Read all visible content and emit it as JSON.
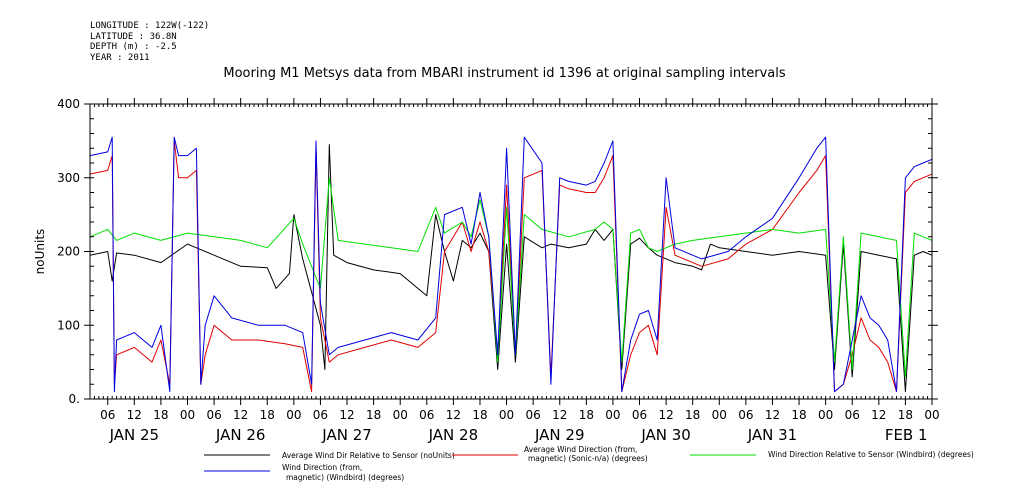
{
  "header": {
    "longitude": "LONGITUDE : 122W(-122)",
    "latitude": "LATITUDE : 36.8N",
    "depth": "DEPTH (m) : -2.5",
    "year": "YEAR : 2011"
  },
  "chart_data": {
    "type": "line",
    "title": "Mooring M1 Metsys data from MBARI instrument id 1396 at original sampling intervals",
    "ylabel": "noUnits",
    "xlabel": "",
    "ylim": [
      0,
      400
    ],
    "yticks": [
      0,
      100,
      200,
      300,
      400
    ],
    "ytick_labels": [
      "0.",
      "100",
      "200",
      "300",
      "400"
    ],
    "xlim_hours": [
      2,
      192
    ],
    "hour_ticks": [
      "06",
      "12",
      "18",
      "00",
      "06",
      "12",
      "18",
      "00",
      "06",
      "12",
      "18",
      "00",
      "06",
      "12",
      "18",
      "00",
      "06",
      "12",
      "18",
      "00",
      "06",
      "12",
      "18",
      "00",
      "06",
      "12",
      "18",
      "00",
      "06",
      "12",
      "18",
      "00"
    ],
    "day_labels": [
      "JAN 25",
      "JAN 26",
      "JAN 27",
      "JAN 28",
      "JAN 29",
      "JAN 30",
      "JAN 31",
      "FEB 1"
    ],
    "grid": false,
    "legend_position": "bottom",
    "series": [
      {
        "name": "Average Wind Dir Relative to Sensor (noUnits)",
        "color": "#000000",
        "points": [
          [
            2,
            195
          ],
          [
            6,
            200
          ],
          [
            7,
            160
          ],
          [
            8,
            198
          ],
          [
            12,
            195
          ],
          [
            18,
            185
          ],
          [
            24,
            210
          ],
          [
            30,
            195
          ],
          [
            36,
            180
          ],
          [
            42,
            178
          ],
          [
            44,
            150
          ],
          [
            47,
            170
          ],
          [
            48,
            250
          ],
          [
            50,
            190
          ],
          [
            52,
            145
          ],
          [
            54,
            100
          ],
          [
            55,
            40
          ],
          [
            56,
            345
          ],
          [
            57,
            195
          ],
          [
            60,
            185
          ],
          [
            66,
            175
          ],
          [
            72,
            170
          ],
          [
            76,
            150
          ],
          [
            78,
            140
          ],
          [
            80,
            250
          ],
          [
            82,
            200
          ],
          [
            84,
            160
          ],
          [
            86,
            215
          ],
          [
            88,
            205
          ],
          [
            90,
            225
          ],
          [
            92,
            200
          ],
          [
            94,
            40
          ],
          [
            96,
            210
          ],
          [
            98,
            50
          ],
          [
            100,
            220
          ],
          [
            104,
            205
          ],
          [
            106,
            210
          ],
          [
            110,
            205
          ],
          [
            114,
            210
          ],
          [
            116,
            230
          ],
          [
            118,
            215
          ],
          [
            120,
            230
          ],
          [
            122,
            40
          ],
          [
            124,
            210
          ],
          [
            126,
            218
          ],
          [
            128,
            205
          ],
          [
            130,
            195
          ],
          [
            134,
            185
          ],
          [
            138,
            180
          ],
          [
            140,
            175
          ],
          [
            142,
            210
          ],
          [
            144,
            205
          ],
          [
            150,
            200
          ],
          [
            156,
            195
          ],
          [
            162,
            200
          ],
          [
            168,
            195
          ],
          [
            170,
            40
          ],
          [
            172,
            210
          ],
          [
            174,
            30
          ],
          [
            176,
            200
          ],
          [
            180,
            195
          ],
          [
            184,
            190
          ],
          [
            186,
            10
          ],
          [
            188,
            195
          ],
          [
            190,
            200
          ],
          [
            192,
            195
          ]
        ]
      },
      {
        "name": "Average Wind Direction (from, magnetic) (Sonic-n/a) (degrees)",
        "color": "#e00000",
        "points": [
          [
            2,
            305
          ],
          [
            6,
            310
          ],
          [
            7,
            330
          ],
          [
            7.5,
            20
          ],
          [
            8,
            60
          ],
          [
            12,
            70
          ],
          [
            16,
            50
          ],
          [
            18,
            80
          ],
          [
            20,
            20
          ],
          [
            21,
            350
          ],
          [
            22,
            300
          ],
          [
            24,
            300
          ],
          [
            26,
            310
          ],
          [
            27,
            20
          ],
          [
            28,
            60
          ],
          [
            30,
            100
          ],
          [
            34,
            80
          ],
          [
            40,
            80
          ],
          [
            46,
            75
          ],
          [
            50,
            70
          ],
          [
            52,
            10
          ],
          [
            53,
            340
          ],
          [
            54,
            110
          ],
          [
            56,
            50
          ],
          [
            58,
            60
          ],
          [
            64,
            70
          ],
          [
            70,
            80
          ],
          [
            76,
            70
          ],
          [
            80,
            90
          ],
          [
            82,
            200
          ],
          [
            86,
            240
          ],
          [
            88,
            200
          ],
          [
            90,
            240
          ],
          [
            92,
            200
          ],
          [
            94,
            60
          ],
          [
            96,
            290
          ],
          [
            98,
            60
          ],
          [
            100,
            300
          ],
          [
            104,
            310
          ],
          [
            106,
            30
          ],
          [
            108,
            290
          ],
          [
            110,
            285
          ],
          [
            114,
            280
          ],
          [
            116,
            280
          ],
          [
            118,
            300
          ],
          [
            120,
            330
          ],
          [
            122,
            10
          ],
          [
            124,
            60
          ],
          [
            126,
            90
          ],
          [
            128,
            100
          ],
          [
            130,
            60
          ],
          [
            132,
            260
          ],
          [
            134,
            195
          ],
          [
            140,
            180
          ],
          [
            146,
            190
          ],
          [
            150,
            210
          ],
          [
            156,
            230
          ],
          [
            162,
            280
          ],
          [
            166,
            310
          ],
          [
            168,
            330
          ],
          [
            170,
            10
          ],
          [
            172,
            20
          ],
          [
            174,
            60
          ],
          [
            176,
            110
          ],
          [
            178,
            80
          ],
          [
            180,
            70
          ],
          [
            182,
            50
          ],
          [
            184,
            10
          ],
          [
            186,
            280
          ],
          [
            188,
            295
          ],
          [
            190,
            300
          ],
          [
            192,
            305
          ]
        ]
      },
      {
        "name": "Wind Direction Relative to Sensor (Windbird) (degrees)",
        "color": "#00e000",
        "points": [
          [
            2,
            220
          ],
          [
            6,
            230
          ],
          [
            8,
            215
          ],
          [
            12,
            225
          ],
          [
            18,
            215
          ],
          [
            24,
            225
          ],
          [
            30,
            220
          ],
          [
            36,
            215
          ],
          [
            42,
            205
          ],
          [
            48,
            245
          ],
          [
            50,
            210
          ],
          [
            54,
            150
          ],
          [
            56,
            300
          ],
          [
            58,
            215
          ],
          [
            64,
            210
          ],
          [
            70,
            205
          ],
          [
            76,
            200
          ],
          [
            80,
            260
          ],
          [
            82,
            225
          ],
          [
            86,
            240
          ],
          [
            88,
            220
          ],
          [
            90,
            270
          ],
          [
            92,
            220
          ],
          [
            94,
            50
          ],
          [
            96,
            260
          ],
          [
            98,
            60
          ],
          [
            100,
            250
          ],
          [
            104,
            230
          ],
          [
            110,
            220
          ],
          [
            116,
            230
          ],
          [
            118,
            240
          ],
          [
            120,
            230
          ],
          [
            122,
            50
          ],
          [
            124,
            225
          ],
          [
            126,
            230
          ],
          [
            128,
            205
          ],
          [
            130,
            200
          ],
          [
            134,
            210
          ],
          [
            138,
            215
          ],
          [
            144,
            220
          ],
          [
            150,
            225
          ],
          [
            156,
            230
          ],
          [
            162,
            225
          ],
          [
            168,
            230
          ],
          [
            170,
            50
          ],
          [
            172,
            220
          ],
          [
            174,
            40
          ],
          [
            176,
            225
          ],
          [
            180,
            220
          ],
          [
            184,
            215
          ],
          [
            186,
            30
          ],
          [
            188,
            225
          ],
          [
            190,
            220
          ],
          [
            192,
            215
          ]
        ]
      },
      {
        "name": "Wind Direction (from, magnetic) (Windbird) (degrees)",
        "color": "#0000e0",
        "points": [
          [
            2,
            330
          ],
          [
            6,
            335
          ],
          [
            7,
            355
          ],
          [
            7.5,
            10
          ],
          [
            8,
            80
          ],
          [
            12,
            90
          ],
          [
            16,
            70
          ],
          [
            18,
            100
          ],
          [
            20,
            10
          ],
          [
            21,
            355
          ],
          [
            22,
            330
          ],
          [
            24,
            330
          ],
          [
            26,
            340
          ],
          [
            27,
            20
          ],
          [
            28,
            100
          ],
          [
            30,
            140
          ],
          [
            34,
            110
          ],
          [
            40,
            100
          ],
          [
            46,
            100
          ],
          [
            50,
            90
          ],
          [
            52,
            20
          ],
          [
            53,
            350
          ],
          [
            54,
            130
          ],
          [
            56,
            60
          ],
          [
            58,
            70
          ],
          [
            64,
            80
          ],
          [
            70,
            90
          ],
          [
            76,
            80
          ],
          [
            80,
            110
          ],
          [
            82,
            250
          ],
          [
            86,
            260
          ],
          [
            88,
            210
          ],
          [
            90,
            280
          ],
          [
            92,
            220
          ],
          [
            94,
            60
          ],
          [
            96,
            340
          ],
          [
            98,
            60
          ],
          [
            100,
            355
          ],
          [
            104,
            320
          ],
          [
            106,
            20
          ],
          [
            108,
            300
          ],
          [
            110,
            295
          ],
          [
            114,
            290
          ],
          [
            116,
            295
          ],
          [
            118,
            320
          ],
          [
            120,
            350
          ],
          [
            122,
            10
          ],
          [
            124,
            80
          ],
          [
            126,
            115
          ],
          [
            128,
            120
          ],
          [
            130,
            80
          ],
          [
            132,
            300
          ],
          [
            134,
            205
          ],
          [
            140,
            190
          ],
          [
            146,
            200
          ],
          [
            150,
            220
          ],
          [
            156,
            245
          ],
          [
            162,
            300
          ],
          [
            166,
            340
          ],
          [
            168,
            355
          ],
          [
            170,
            10
          ],
          [
            172,
            20
          ],
          [
            174,
            80
          ],
          [
            176,
            140
          ],
          [
            178,
            110
          ],
          [
            180,
            100
          ],
          [
            182,
            80
          ],
          [
            184,
            10
          ],
          [
            186,
            300
          ],
          [
            188,
            315
          ],
          [
            190,
            320
          ],
          [
            192,
            325
          ]
        ]
      }
    ]
  },
  "legend_labels": {
    "l1": "Average Wind Dir Relative to Sensor (noUnits)",
    "l2a": "Average Wind Direction (from,",
    "l2b": "magnetic) (Sonic-n/a) (degrees)",
    "l3": "Wind Direction Relative to Sensor (Windbird) (degrees)",
    "l4a": "Wind Direction (from,",
    "l4b": "magnetic) (Windbird) (degrees)"
  }
}
